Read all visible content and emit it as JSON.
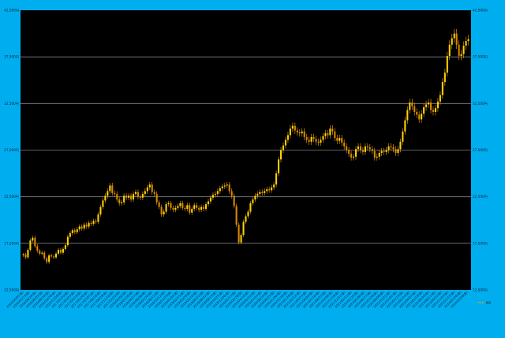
{
  "colors": {
    "frame": "#00aeef",
    "plot_bg": "#000000",
    "grid": "#7f7f7f",
    "candle_up": "#ffd200",
    "candle_down": "#d98a00",
    "candle_wick": "#f5a800",
    "axis_text": "#0b1a3a"
  },
  "chart_data": {
    "type": "candlestick",
    "title": "",
    "xlabel": "",
    "ylabel": "",
    "ylim": [
      12500,
      42500
    ],
    "yticks": [
      12500,
      17500,
      22500,
      27500,
      32500,
      37500,
      42500
    ],
    "ytick_labels": [
      "12,500円",
      "17,500円",
      "22,500円",
      "27,500円",
      "32,500円",
      "37,500円",
      "42,500円"
    ],
    "grid": true,
    "legend": {
      "position": "bottom-right",
      "label": "N5"
    },
    "x_tick_labels": [
      "2016/04/01(金)",
      "2016/05/13(金)",
      "2016/06/24(金)",
      "2016/08/05(金)",
      "2016/09/16(金)",
      "2016/10/28(金)",
      "2016/12/09(金)",
      "2017/01/20(金)",
      "2017/03/03(金)",
      "2017/04/14(金)",
      "2017/05/26(金)",
      "2017/07/07(金)",
      "2017/08/18(金)",
      "2017/09/29(金)",
      "2017/11/10(金)",
      "2017/12/22(金)",
      "2018/02/02(金)",
      "2018/03/16(金)",
      "2018/04/27(金)",
      "2018/06/08(金)",
      "2018/07/20(金)",
      "2018/08/31(金)",
      "2018/10/12(金)",
      "2018/11/23(金)",
      "2019/01/04(金)",
      "2019/02/15(金)",
      "2019/03/29(金)",
      "2019/05/10(金)",
      "2019/06/21(金)",
      "2019/08/02(金)",
      "2019/09/13(金)",
      "2019/10/25(金)",
      "2019/12/06(金)",
      "2020/01/17(金)",
      "2020/02/28(金)",
      "2020/04/10(金)",
      "2020/05/22(金)",
      "2020/07/03(金)",
      "2020/08/14(金)",
      "2020/09/25(金)",
      "2020/11/06(金)",
      "2020/12/18(金)",
      "2021/01/29(金)",
      "2021/03/12(金)",
      "2021/04/23(金)",
      "2021/06/04(金)",
      "2021/07/16(金)",
      "2021/08/27(金)",
      "2021/10/08(金)",
      "2021/11/19(金)",
      "2021/12/31(金)",
      "2022/02/11(金)",
      "2022/03/25(金)",
      "2022/05/06(金)",
      "2022/06/17(金)",
      "2022/07/29(金)",
      "2022/09/09(金)",
      "2022/10/21(金)",
      "2022/12/02(金)",
      "2023/01/13(金)",
      "2023/02/24(金)",
      "2023/04/07(金)",
      "2023/05/19(金)",
      "2023/06/30(金)",
      "2023/08/11(金)",
      "2023/09/22(金)",
      "2023/11/03(金)",
      "2023/12/15(金)",
      "2024/01/26(金)",
      "2024/03/08(金)"
    ],
    "series": [
      {
        "name": "N5",
        "close": [
          16300,
          16000,
          16800,
          17800,
          18100,
          17200,
          16700,
          16400,
          16500,
          15900,
          15500,
          16200,
          16100,
          16000,
          16400,
          16800,
          16500,
          16900,
          17300,
          18200,
          18600,
          18900,
          18700,
          19000,
          19300,
          19100,
          19500,
          19300,
          19700,
          19600,
          19900,
          19800,
          20600,
          21400,
          22100,
          22600,
          23100,
          23700,
          22900,
          22800,
          22200,
          21800,
          21900,
          22600,
          22400,
          22600,
          22200,
          22800,
          23000,
          22500,
          22400,
          22800,
          23100,
          23500,
          23800,
          23000,
          22800,
          21900,
          21400,
          20600,
          20900,
          21700,
          21800,
          21300,
          21100,
          21300,
          21500,
          21800,
          21300,
          21200,
          21600,
          20800,
          21200,
          21600,
          21300,
          21100,
          21400,
          21200,
          21700,
          22000,
          22400,
          22700,
          22800,
          23100,
          23400,
          23600,
          23700,
          23800,
          23100,
          22600,
          21500,
          19500,
          17600,
          18400,
          19800,
          20400,
          20900,
          21800,
          22200,
          22600,
          22800,
          23000,
          22900,
          23100,
          23300,
          23200,
          23500,
          23800,
          25000,
          26500,
          27500,
          28000,
          28600,
          29100,
          29800,
          30100,
          29600,
          29400,
          29300,
          29500,
          28900,
          28600,
          28400,
          28900,
          28700,
          28400,
          28300,
          28600,
          29000,
          29300,
          29100,
          29800,
          29500,
          28800,
          28500,
          28800,
          28300,
          27900,
          27500,
          27100,
          26700,
          26800,
          27600,
          27900,
          27500,
          27300,
          27900,
          27800,
          27600,
          27400,
          26700,
          26800,
          27200,
          27400,
          27300,
          27500,
          27900,
          27800,
          27600,
          27200,
          27600,
          28400,
          29500,
          30700,
          31800,
          32600,
          32200,
          31600,
          31300,
          30800,
          31400,
          32100,
          32400,
          32600,
          31800,
          31600,
          32000,
          32700,
          33400,
          34800,
          35800,
          37600,
          38800,
          39500,
          40000,
          38800,
          37600,
          37800,
          38700,
          39200,
          39400
        ]
      }
    ]
  }
}
